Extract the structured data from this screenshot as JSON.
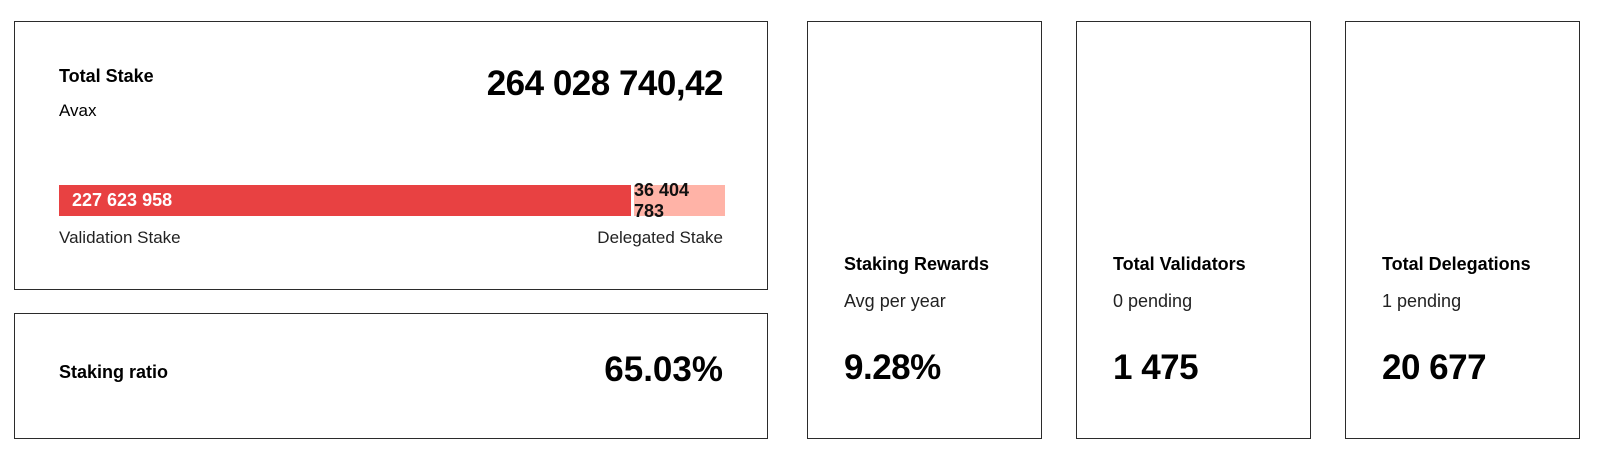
{
  "total_stake": {
    "title": "Total Stake",
    "unit": "Avax",
    "value": "264 028 740,42",
    "validation_stake": {
      "value": "227 623 958",
      "label": "Validation Stake",
      "share": 0.862,
      "color": "#e84142"
    },
    "delegated_stake": {
      "value": "36 404 783",
      "label": "Delegated Stake",
      "share": 0.138,
      "color": "#ffb3a7"
    }
  },
  "staking_ratio": {
    "title": "Staking ratio",
    "value": "65.03%"
  },
  "staking_rewards": {
    "title": "Staking Rewards",
    "subtitle": "Avg per year",
    "value": "9.28%"
  },
  "total_validators": {
    "title": "Total Validators",
    "subtitle": "0 pending",
    "value": "1 475"
  },
  "total_delegations": {
    "title": "Total Delegations",
    "subtitle": "1 pending",
    "value": "20 677"
  }
}
